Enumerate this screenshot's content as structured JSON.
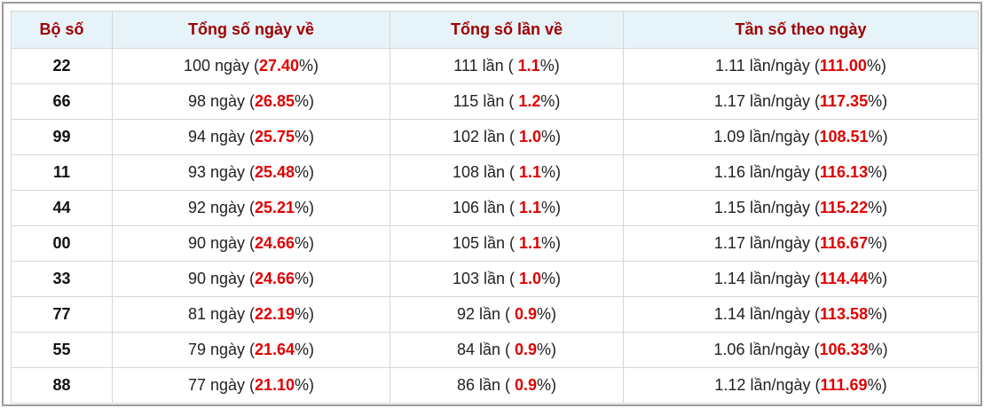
{
  "table": {
    "headers": [
      "Bộ số",
      "Tổng số ngày về",
      "Tổng số lần về",
      "Tần số theo ngày"
    ],
    "rows": [
      [
        "22",
        [
          "100 ngày (",
          "27.40",
          "%)"
        ],
        [
          "111 lần ( ",
          "1.1",
          "%)"
        ],
        [
          "1.11 lần/ngày (",
          "111.00",
          "%)"
        ]
      ],
      [
        "66",
        [
          "98 ngày (",
          "26.85",
          "%)"
        ],
        [
          "115 lần ( ",
          "1.2",
          "%)"
        ],
        [
          "1.17 lần/ngày (",
          "117.35",
          "%)"
        ]
      ],
      [
        "99",
        [
          "94 ngày (",
          "25.75",
          "%)"
        ],
        [
          "102 lần ( ",
          "1.0",
          "%)"
        ],
        [
          "1.09 lần/ngày (",
          "108.51",
          "%)"
        ]
      ],
      [
        "11",
        [
          "93 ngày (",
          "25.48",
          "%)"
        ],
        [
          "108 lần ( ",
          "1.1",
          "%)"
        ],
        [
          "1.16 lần/ngày (",
          "116.13",
          "%)"
        ]
      ],
      [
        "44",
        [
          "92 ngày (",
          "25.21",
          "%)"
        ],
        [
          "106 lần ( ",
          "1.1",
          "%)"
        ],
        [
          "1.15 lần/ngày (",
          "115.22",
          "%)"
        ]
      ],
      [
        "00",
        [
          "90 ngày (",
          "24.66",
          "%)"
        ],
        [
          "105 lần ( ",
          "1.1",
          "%)"
        ],
        [
          "1.17 lần/ngày (",
          "116.67",
          "%)"
        ]
      ],
      [
        "33",
        [
          "90 ngày (",
          "24.66",
          "%)"
        ],
        [
          "103 lần ( ",
          "1.0",
          "%)"
        ],
        [
          "1.14 lần/ngày (",
          "114.44",
          "%)"
        ]
      ],
      [
        "77",
        [
          "81 ngày (",
          "22.19",
          "%)"
        ],
        [
          "92 lần ( ",
          "0.9",
          "%)"
        ],
        [
          "1.14 lần/ngày (",
          "113.58",
          "%)"
        ]
      ],
      [
        "55",
        [
          "79 ngày (",
          "21.64",
          "%)"
        ],
        [
          "84 lần ( ",
          "0.9",
          "%)"
        ],
        [
          "1.06 lần/ngày (",
          "106.33",
          "%)"
        ]
      ],
      [
        "88",
        [
          "77 ngày (",
          "21.10",
          "%)"
        ],
        [
          "86 lần ( ",
          "0.9",
          "%)"
        ],
        [
          "1.12 lần/ngày (",
          "111.69",
          "%)"
        ]
      ]
    ]
  }
}
